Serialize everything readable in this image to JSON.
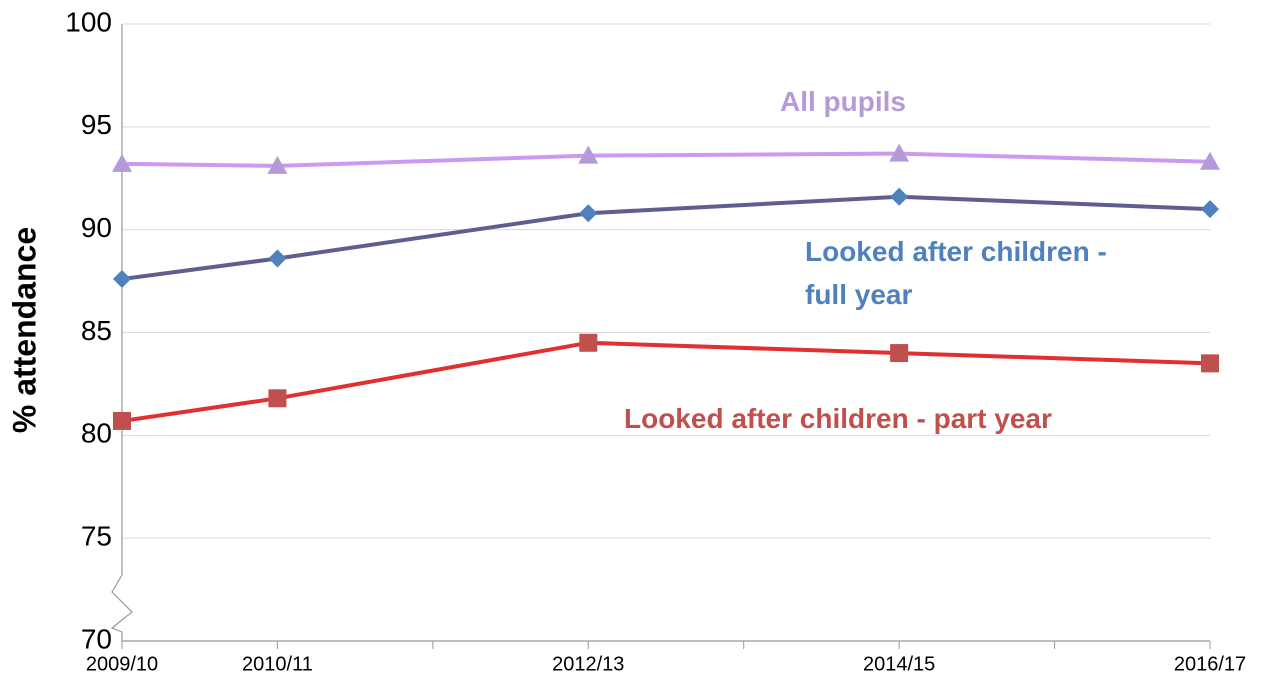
{
  "chart_data": {
    "type": "line",
    "y_label": "% attendance",
    "x": [
      2009,
      2010,
      2012,
      2014,
      2016
    ],
    "xlim": [
      2009,
      2016
    ],
    "xticks": [
      {
        "value": 2009,
        "label": "2009/10"
      },
      {
        "value": 2010,
        "label": "2010/11"
      },
      {
        "value": 2012,
        "label": "2012/13"
      },
      {
        "value": 2014,
        "label": "2014/15"
      },
      {
        "value": 2016,
        "label": "2016/17"
      }
    ],
    "xminor": [
      2011,
      2013,
      2015
    ],
    "ylim": [
      70,
      100
    ],
    "yticks": [
      70,
      75,
      80,
      85,
      90,
      95,
      100
    ],
    "grid": true,
    "series": [
      {
        "name": "All pupils",
        "color": "#cc99ee",
        "marker": "triangle",
        "marker_color": "#b49ad8",
        "label_color": "#b69ad8",
        "values": [
          93.2,
          93.1,
          93.6,
          93.7,
          93.3
        ]
      },
      {
        "name": "Looked after children - full year",
        "color": "#5f5f8f",
        "marker": "diamond",
        "marker_color": "#4f81bd",
        "label_color": "#4f81bd",
        "values": [
          87.6,
          88.6,
          90.8,
          91.6,
          91.0
        ]
      },
      {
        "name": "Looked after children - part year",
        "color": "#e03030",
        "marker": "square",
        "marker_color": "#c0504d",
        "label_color": "#c0504d",
        "values": [
          80.7,
          81.8,
          84.5,
          84.0,
          83.5
        ]
      }
    ]
  }
}
